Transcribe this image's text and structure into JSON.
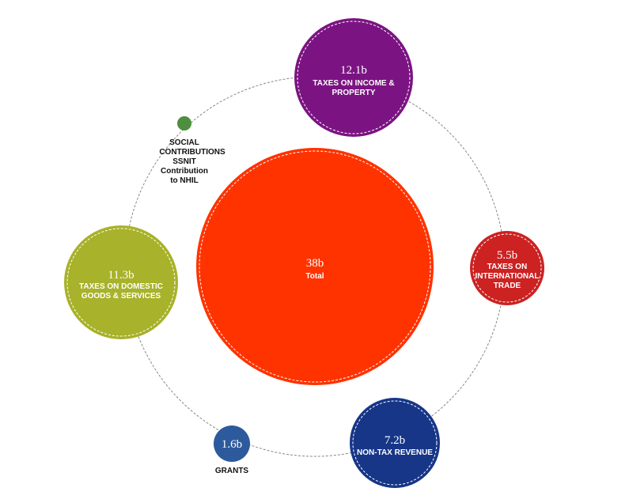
{
  "colors": {
    "total": "#ff3300",
    "income_property": "#7b1482",
    "international_trade": "#cc2222",
    "non_tax_revenue": "#173688",
    "grants": "#2c5a9c",
    "domestic_goods_services": "#a8b22a",
    "social_contributions": "#4e8e3f",
    "orbit": "#888888"
  },
  "center": {
    "value": "38b",
    "label": "Total"
  },
  "nodes": [
    {
      "id": "income-property",
      "value": "12.1b",
      "label_lines": [
        "TAXES ON INCOME &",
        "PROPERTY"
      ],
      "color_key": "income_property",
      "icon": "circle"
    },
    {
      "id": "international-trade",
      "value": "5.5b",
      "label_lines": [
        "TAXES ON",
        "INTERNATIONAL",
        "TRADE"
      ],
      "color_key": "international_trade",
      "icon": "circle"
    },
    {
      "id": "non-tax-revenue",
      "value": "7.2b",
      "label_lines": [
        "NON-TAX REVENUE"
      ],
      "color_key": "non_tax_revenue",
      "icon": "circle"
    },
    {
      "id": "grants",
      "value": "1.6b",
      "label_lines": [
        "GRANTS"
      ],
      "color_key": "grants",
      "icon": "circle"
    },
    {
      "id": "domestic-goods-services",
      "value": "11.3b",
      "label_lines": [
        "TAXES ON DOMESTIC",
        "GOODS & SERVICES"
      ],
      "color_key": "domestic_goods_services",
      "icon": "circle"
    },
    {
      "id": "social-contributions",
      "value": "",
      "label_lines": [
        "SOCIAL",
        "CONTRIBUTIONS",
        "SSNIT",
        "Contribution",
        "to NHIL"
      ],
      "color_key": "social_contributions",
      "icon": "dot"
    }
  ]
}
